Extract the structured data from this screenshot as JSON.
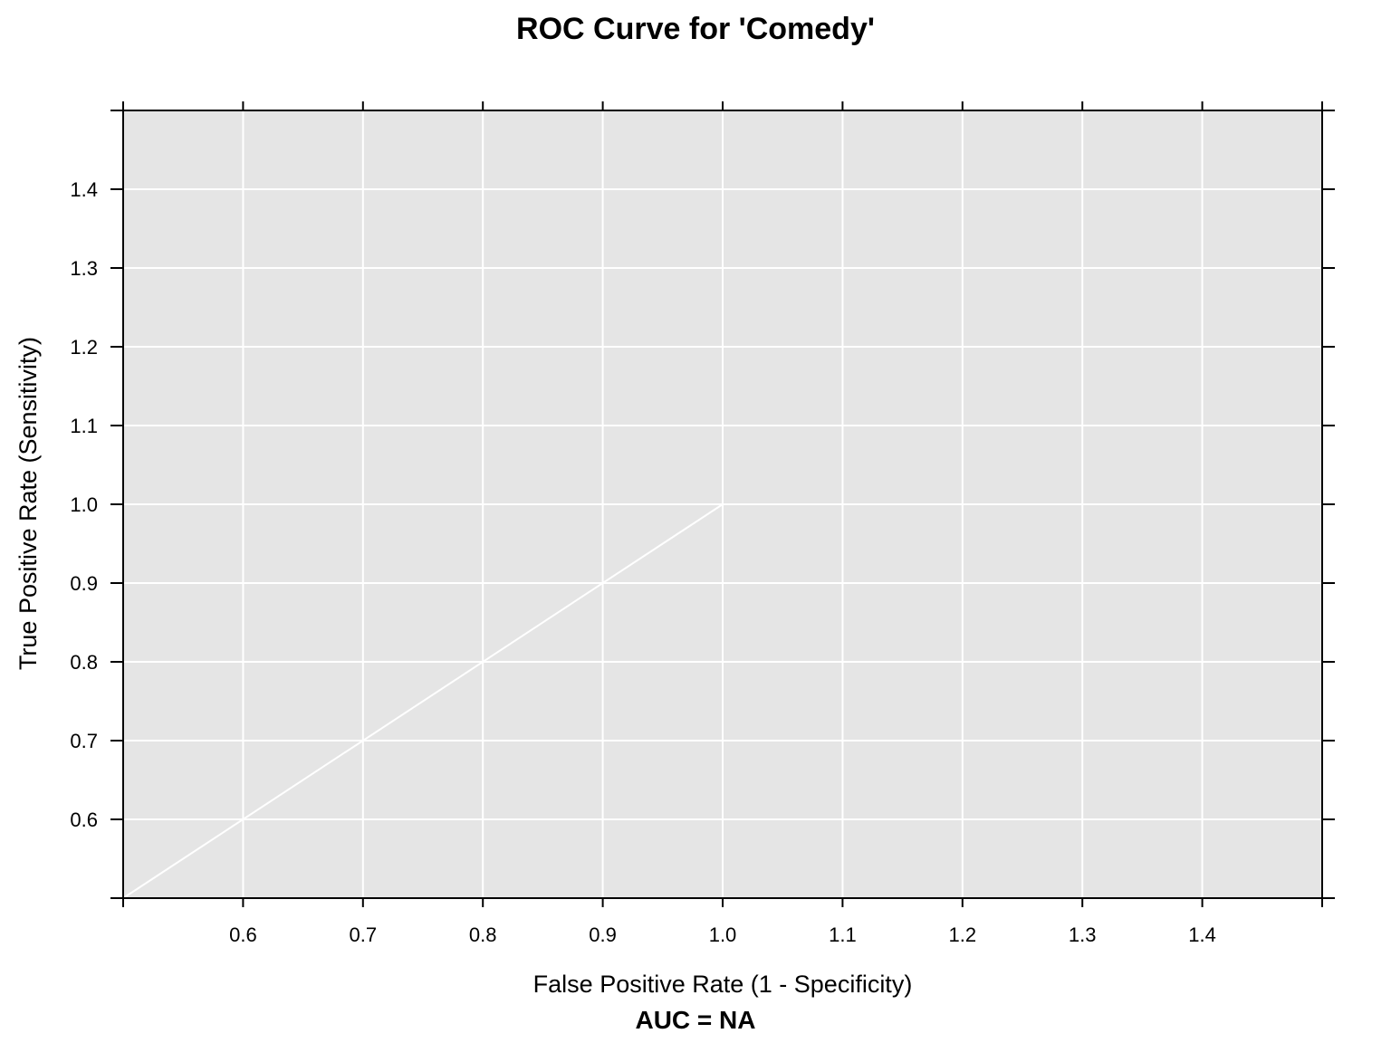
{
  "chart_data": {
    "type": "line",
    "title": "ROC Curve for 'Comedy'",
    "xlabel": "False Positive Rate (1 - Specificity)",
    "ylabel": "True Positive Rate (Sensitivity)",
    "sublabel": "AUC =  NA",
    "xlim": [
      0.5,
      1.5
    ],
    "ylim": [
      0.5,
      1.5
    ],
    "x_ticks": [
      "0.6",
      "0.7",
      "0.8",
      "0.9",
      "1.0",
      "1.1",
      "1.2",
      "1.3",
      "1.4"
    ],
    "y_ticks": [
      "0.6",
      "0.7",
      "0.8",
      "0.9",
      "1.0",
      "1.1",
      "1.2",
      "1.3",
      "1.4"
    ],
    "grid": true,
    "panel_color": "#e5e5e5",
    "grid_color": "#ffffff",
    "line_color": "#ffffff",
    "series": [
      {
        "x": [
          0.5,
          1.0
        ],
        "y": [
          0.5,
          1.0
        ]
      }
    ]
  }
}
